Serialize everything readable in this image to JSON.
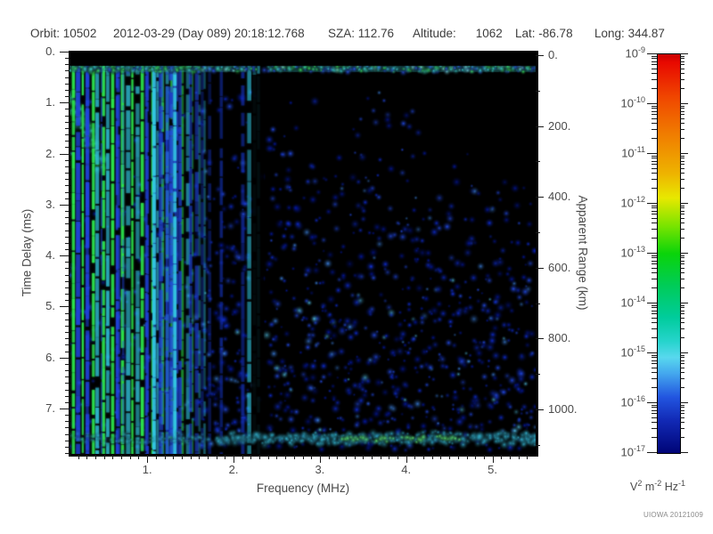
{
  "header": {
    "orbit_label": "Orbit:",
    "orbit": "10502",
    "datetime": "2012-03-29 (Day 089) 20:18:12.768",
    "sza_label": "SZA:",
    "sza": "112.76",
    "altitude_label": "Altitude:",
    "altitude": "1062",
    "lat_label": "Lat:",
    "lat": "-86.78",
    "long_label": "Long:",
    "long": "344.87"
  },
  "chart_data": {
    "type": "heatmap",
    "subtype": "radar-sounder-ionogram-spectrogram",
    "xlabel": "Frequency (MHz)",
    "ylabel_left": "Time Delay (ms)",
    "ylabel_right": "Apparent Range (km)",
    "x_range_mhz": [
      0.1,
      5.5
    ],
    "x_major_ticks": [
      "1.",
      "2.",
      "3.",
      "4.",
      "5."
    ],
    "x_minor_step_mhz": 0.1,
    "y_left_range_ms": [
      0.0,
      7.89
    ],
    "y_left_major_ticks": [
      "0.",
      "1.",
      "2.",
      "3.",
      "4.",
      "5.",
      "6.",
      "7."
    ],
    "y_left_minor_step_ms": 0.125,
    "y_right_range_km": [
      0,
      1125
    ],
    "y_right_major_ticks": [
      "0.",
      "200.",
      "400.",
      "600.",
      "800.",
      "1000."
    ],
    "y_right_minor_step_km": 100,
    "grid": false,
    "colorbar": {
      "base": "10",
      "exponents": [
        -9,
        -10,
        -11,
        -12,
        -13,
        -14,
        -15,
        -16,
        -17
      ],
      "scale": "log",
      "unit_parts": [
        [
          "V",
          "2"
        ],
        [
          "m",
          "-2"
        ],
        [
          "Hz",
          "-1"
        ]
      ],
      "gradient_stops": [
        [
          0.0,
          "#c80000"
        ],
        [
          0.02,
          "#e80800"
        ],
        [
          0.11,
          "#f04800"
        ],
        [
          0.2,
          "#f07c00"
        ],
        [
          0.3,
          "#eeb400"
        ],
        [
          0.36,
          "#e8e800"
        ],
        [
          0.43,
          "#7ae400"
        ],
        [
          0.5,
          "#0ad40a"
        ],
        [
          0.58,
          "#00cc58"
        ],
        [
          0.66,
          "#00cc9c"
        ],
        [
          0.72,
          "#26d4cc"
        ],
        [
          0.76,
          "#58d8ee"
        ],
        [
          0.8,
          "#44a8ee"
        ],
        [
          0.86,
          "#2255e0"
        ],
        [
          0.92,
          "#1128b4"
        ],
        [
          1.0,
          "#000577"
        ]
      ]
    },
    "features": {
      "seed": 20121009,
      "background": "#000000",
      "top_black_band_ms": [
        0.0,
        0.28
      ],
      "surface_echo_line": {
        "delay_ms": 0.33,
        "half_width_ms": 0.08,
        "gap_mhz": [
          2.15,
          2.42
        ],
        "colors": {
          "green": "#38e05c",
          "cyan": "#3cd4d8",
          "blue": "#2a55f0",
          "light": "#7ee8e0"
        }
      },
      "plasma_harmonic_stripes": {
        "first_mhz": 0.14,
        "spacing_mhz": 0.115,
        "count": 13,
        "bright_cyan_mhz": [
          1.08,
          1.32
        ],
        "faint_region_mhz": [
          1.6,
          2.3
        ],
        "colors": {
          "green": "#2ce24a",
          "cyan": "#33c8e2",
          "blue": "#2248e8",
          "faint": "#1534c0"
        }
      },
      "dark_column_mhz": [
        2.21,
        2.35
      ],
      "diagonal_swath": {
        "from_mhz": 0.1,
        "from_ms": 0.85,
        "to_mhz": 0.5,
        "to_ms": 2.3,
        "color": "#35d8c8"
      },
      "noise_field": {
        "count": 2600,
        "palette": [
          "#0418a8",
          "#0f2fe0",
          "#2550f8",
          "#3f8af0",
          "#55c8ee"
        ],
        "density": "increases downward; sparse upper-right; suppressed in dark column"
      },
      "bottom_band": {
        "delay_ms": 7.59,
        "half_width_ms": 0.14,
        "start_mhz": 1.8,
        "green_segments_mhz": [
          [
            3.25,
            3.55
          ],
          [
            3.65,
            3.85
          ],
          [
            3.95,
            4.2
          ],
          [
            4.35,
            4.6
          ]
        ],
        "colors": {
          "cyan": "#38c4e4",
          "green": "#5ce46e"
        }
      }
    },
    "credit": "UIOWA 20121009"
  }
}
